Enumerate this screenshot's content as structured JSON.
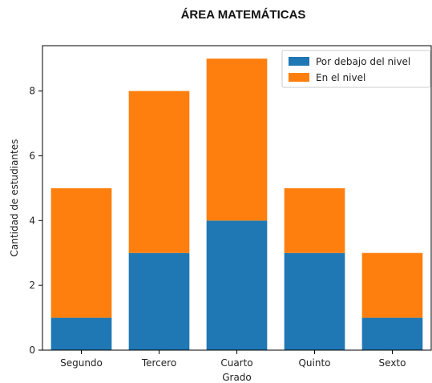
{
  "chart_data": {
    "type": "bar",
    "stacked": true,
    "title": "ÁREA MATEMÁTICAS",
    "xlabel": "Grado",
    "ylabel": "Cantidad de estudiantes",
    "categories": [
      "Segundo",
      "Tercero",
      "Cuarto",
      "Quinto",
      "Sexto"
    ],
    "series": [
      {
        "name": "Por debajo del nivel",
        "values": [
          1,
          3,
          4,
          3,
          1
        ],
        "color": "#1f77b4"
      },
      {
        "name": "En el nivel",
        "values": [
          4,
          5,
          5,
          2,
          2
        ],
        "color": "#ff7f0e"
      }
    ],
    "ylim": [
      0,
      9.4
    ],
    "yticks": [
      0,
      2,
      4,
      6,
      8
    ],
    "grid": false,
    "legend_position": "top-right"
  }
}
